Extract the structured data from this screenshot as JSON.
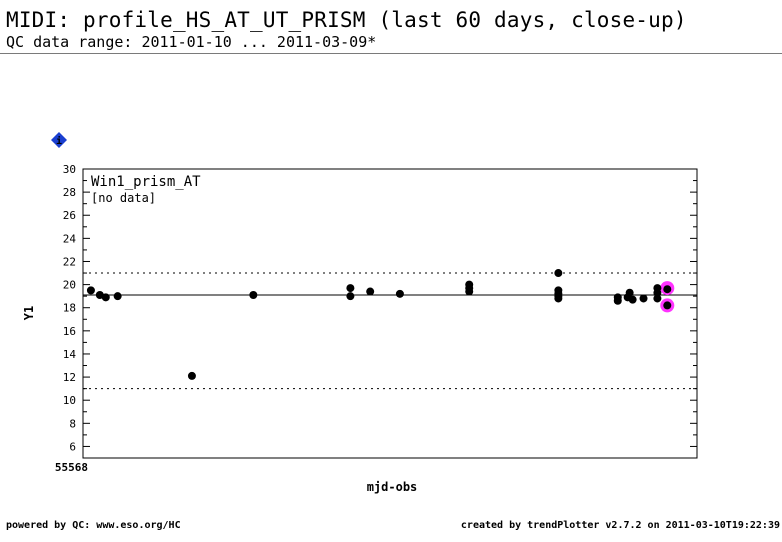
{
  "header": {
    "title": "MIDI: profile_HS_AT_UT_PRISM (last 60 days, close-up)",
    "subtitle": "QC data range: 2011-01-10 ... 2011-03-09*"
  },
  "info_badge": {
    "text": "i",
    "color": "#1a3fd0"
  },
  "footer": {
    "left": "powered by QC: www.eso.org/HC",
    "right": "created by trendPlotter v2.7.2 on 2011-03-10T19:22:39"
  },
  "chart_data": {
    "type": "scatter",
    "title": "",
    "panel_label": "Win1_prism_AT",
    "panel_note": "[no data]",
    "xlabel": "mjd-obs",
    "ylabel": "Y1",
    "x_start_label": "55568",
    "xlim": [
      55568,
      55630
    ],
    "ylim": [
      5,
      30
    ],
    "yticks_major": [
      6,
      8,
      10,
      12,
      14,
      16,
      18,
      20,
      22,
      24,
      26,
      28,
      30
    ],
    "reference_line": 19.1,
    "threshold_upper": 21.0,
    "threshold_lower": 11.0,
    "point_color": "#000000",
    "highlight_color": "#ff33ff",
    "points": [
      {
        "x": 55568.8,
        "y": 19.5
      },
      {
        "x": 55569.7,
        "y": 19.1
      },
      {
        "x": 55570.3,
        "y": 18.9
      },
      {
        "x": 55571.5,
        "y": 19.0
      },
      {
        "x": 55579.0,
        "y": 12.1
      },
      {
        "x": 55585.2,
        "y": 19.1
      },
      {
        "x": 55595.0,
        "y": 19.7
      },
      {
        "x": 55595.0,
        "y": 19.0
      },
      {
        "x": 55597.0,
        "y": 19.4
      },
      {
        "x": 55600.0,
        "y": 19.2
      },
      {
        "x": 55607.0,
        "y": 19.4
      },
      {
        "x": 55607.0,
        "y": 19.7
      },
      {
        "x": 55607.0,
        "y": 20.0
      },
      {
        "x": 55616.0,
        "y": 21.0
      },
      {
        "x": 55616.0,
        "y": 19.5
      },
      {
        "x": 55616.0,
        "y": 19.2
      },
      {
        "x": 55616.0,
        "y": 19.0
      },
      {
        "x": 55616.0,
        "y": 18.8
      },
      {
        "x": 55622.0,
        "y": 18.6
      },
      {
        "x": 55622.0,
        "y": 18.9
      },
      {
        "x": 55623.0,
        "y": 18.9
      },
      {
        "x": 55623.2,
        "y": 19.3
      },
      {
        "x": 55623.5,
        "y": 18.7
      },
      {
        "x": 55624.6,
        "y": 18.8
      },
      {
        "x": 55626.0,
        "y": 19.7
      },
      {
        "x": 55626.0,
        "y": 19.3
      },
      {
        "x": 55626.0,
        "y": 18.8
      },
      {
        "x": 55627.0,
        "y": 19.6
      },
      {
        "x": 55627.0,
        "y": 18.2
      }
    ],
    "highlighted_points": [
      {
        "x": 55627.0,
        "y": 19.7
      },
      {
        "x": 55627.0,
        "y": 18.2
      }
    ]
  }
}
